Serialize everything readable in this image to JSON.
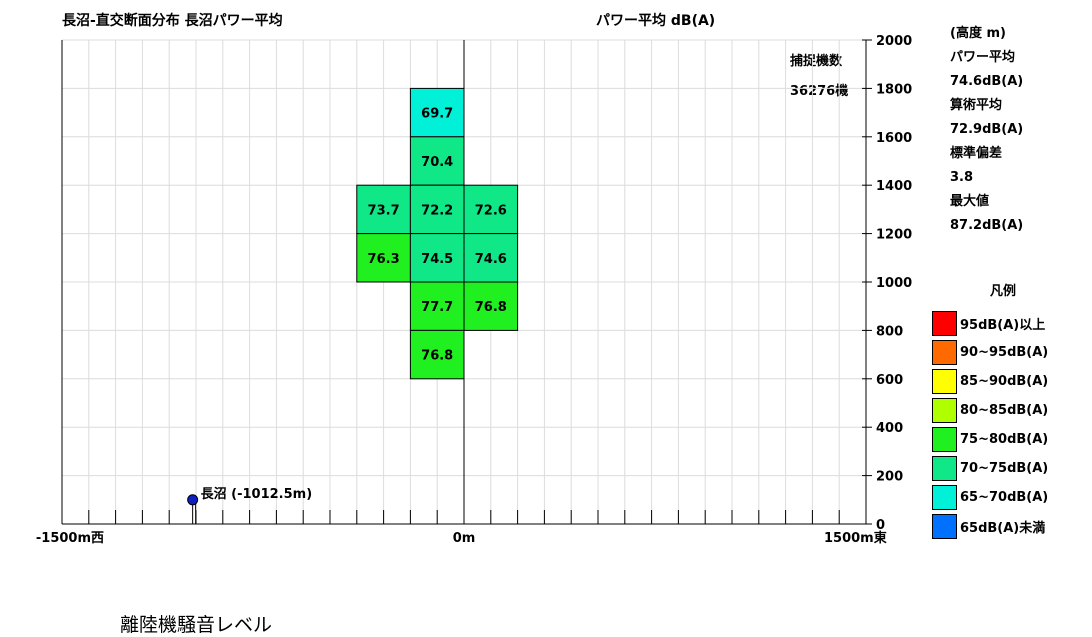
{
  "chart_data": {
    "type": "heatmap",
    "title": "長沼-直交断面分布 長沼パワー平均",
    "metric_label": "パワー平均 dB(A)",
    "x_unit": "m",
    "y_unit": "m",
    "xlim": [
      -1500,
      1500
    ],
    "ylim": [
      0,
      2000
    ],
    "x_tick_step": 100,
    "y_tick_step": 200,
    "x_ticks": [
      {
        "value": -1500,
        "label": "-1500m西"
      },
      {
        "value": 0,
        "label": "0m"
      },
      {
        "value": 1500,
        "label": "1500m東"
      }
    ],
    "y_ticks": [
      {
        "value": 0,
        "label": "0"
      },
      {
        "value": 200,
        "label": "200"
      },
      {
        "value": 400,
        "label": "400"
      },
      {
        "value": 600,
        "label": "600"
      },
      {
        "value": 800,
        "label": "800"
      },
      {
        "value": 1000,
        "label": "1000"
      },
      {
        "value": 1200,
        "label": "1200"
      },
      {
        "value": 1400,
        "label": "1400"
      },
      {
        "value": 1600,
        "label": "1600"
      },
      {
        "value": 1800,
        "label": "1800"
      },
      {
        "value": 2000,
        "label": "2000"
      }
    ],
    "cell_width": 200,
    "cell_height": 200,
    "cells": [
      {
        "x": -200,
        "y": 1600,
        "value": 69.7,
        "color": "#00f0d8"
      },
      {
        "x": -200,
        "y": 1400,
        "value": 70.4,
        "color": "#10e888"
      },
      {
        "x": -400,
        "y": 1200,
        "value": 73.7,
        "color": "#10e888"
      },
      {
        "x": -200,
        "y": 1200,
        "value": 72.2,
        "color": "#10e888"
      },
      {
        "x": 0,
        "y": 1200,
        "value": 72.6,
        "color": "#10e888"
      },
      {
        "x": -400,
        "y": 1000,
        "value": 76.3,
        "color": "#20f020"
      },
      {
        "x": -200,
        "y": 1000,
        "value": 74.5,
        "color": "#10e888"
      },
      {
        "x": 0,
        "y": 1000,
        "value": 74.6,
        "color": "#10e888"
      },
      {
        "x": -200,
        "y": 800,
        "value": 77.7,
        "color": "#20f020"
      },
      {
        "x": 0,
        "y": 800,
        "value": 76.8,
        "color": "#20f020"
      },
      {
        "x": -200,
        "y": 600,
        "value": 76.8,
        "color": "#20f020"
      }
    ],
    "station": {
      "x": -1012.5,
      "y": 100,
      "label": "長沼 (-1012.5m)"
    }
  },
  "capture": {
    "label": "捕捉機数",
    "count": "36276機"
  },
  "stats": {
    "height_unit": "(高度 m)",
    "power_avg_label": "パワー平均",
    "power_avg_value": "74.6dB(A)",
    "arith_avg_label": "算術平均",
    "arith_avg_value": "72.9dB(A)",
    "std_label": "標準偏差",
    "std_value": "3.8",
    "max_label": "最大値",
    "max_value": "87.2dB(A)"
  },
  "legend": {
    "title": "凡例",
    "items": [
      {
        "label": "95dB(A)以上",
        "color": "#ff0000"
      },
      {
        "label": "90~95dB(A)",
        "color": "#ff6a00"
      },
      {
        "label": "85~90dB(A)",
        "color": "#ffff00"
      },
      {
        "label": "80~85dB(A)",
        "color": "#b0ff00"
      },
      {
        "label": "75~80dB(A)",
        "color": "#20f020"
      },
      {
        "label": "70~75dB(A)",
        "color": "#10e888"
      },
      {
        "label": "65~70dB(A)",
        "color": "#00f0d8"
      },
      {
        "label": "65dB(A)未満",
        "color": "#0070ff"
      }
    ]
  },
  "caption": "離陸機騒音レベル"
}
